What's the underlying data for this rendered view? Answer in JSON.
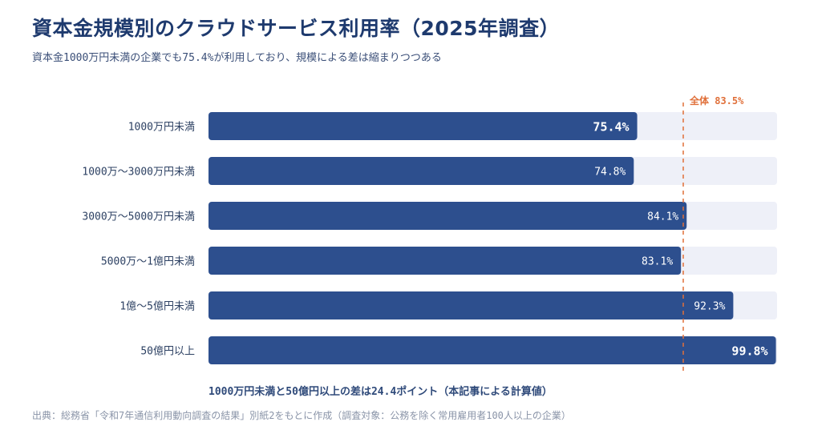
{
  "title": "資本金規模別のクラウドサービス利用率（2025年調査）",
  "subtitle": "資本金1000万円未満の企業でも75.4%が利用しており、規模による差は縮まりつつある",
  "note": "1000万円未満と50億円以上の差は24.4ポイント（本記事による計算値）",
  "source": "出典：総務省「令和7年通信利用動向調査の結果」別紙2をもとに作成（調査対象：公務を除く常用雇用者100人以上の企業）",
  "colors": {
    "bar": "#2d4f8e",
    "track": "#eef0f8",
    "reference": "#e0703a",
    "label": "#2d4163"
  },
  "chart_data": {
    "type": "bar",
    "orientation": "horizontal",
    "categories": [
      "1000万円未満",
      "1000万〜3000万円未満",
      "3000万〜5000万円未満",
      "5000万〜1億円未満",
      "1億〜5億円未満",
      "50億円以上"
    ],
    "values": [
      75.4,
      74.8,
      84.1,
      83.1,
      92.3,
      99.8
    ],
    "value_labels": [
      "75.4%",
      "74.8%",
      "84.1%",
      "83.1%",
      "92.3%",
      "99.8%"
    ],
    "emphasized": [
      true,
      false,
      false,
      false,
      false,
      true
    ],
    "xlim": [
      0,
      100
    ],
    "reference_line": {
      "value": 83.5,
      "label": "全体 83.5%"
    },
    "grid": false,
    "legend": "none"
  }
}
